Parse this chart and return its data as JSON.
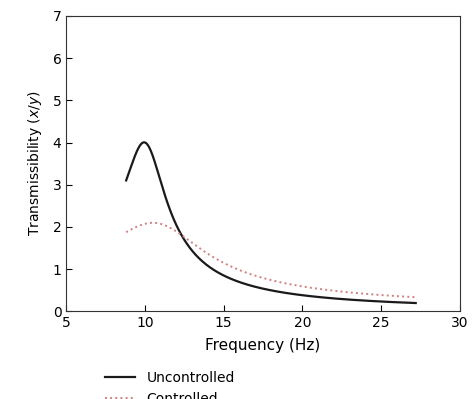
{
  "title": "",
  "xlabel": "Frequency (Hz)",
  "ylabel": "Transmissibility ($x/y$)",
  "xlim": [
    5,
    30
  ],
  "ylim": [
    0,
    7
  ],
  "xticks": [
    5,
    10,
    15,
    20,
    25,
    30
  ],
  "yticks": [
    0,
    1,
    2,
    3,
    4,
    5,
    6,
    7
  ],
  "uncontrolled_color": "#1a1a1a",
  "controlled_color": "#d08080",
  "background_color": "#ffffff",
  "legend_labels": [
    "Uncontrolled",
    "Controlled"
  ],
  "uncontrolled_fn": 10.1,
  "uncontrolled_zeta": 0.13,
  "controlled_fn": 11.2,
  "controlled_zeta": 0.28,
  "f_start": 8.8,
  "f_end": 27.2,
  "figure_width": 4.74,
  "figure_height": 3.99,
  "dpi": 100
}
